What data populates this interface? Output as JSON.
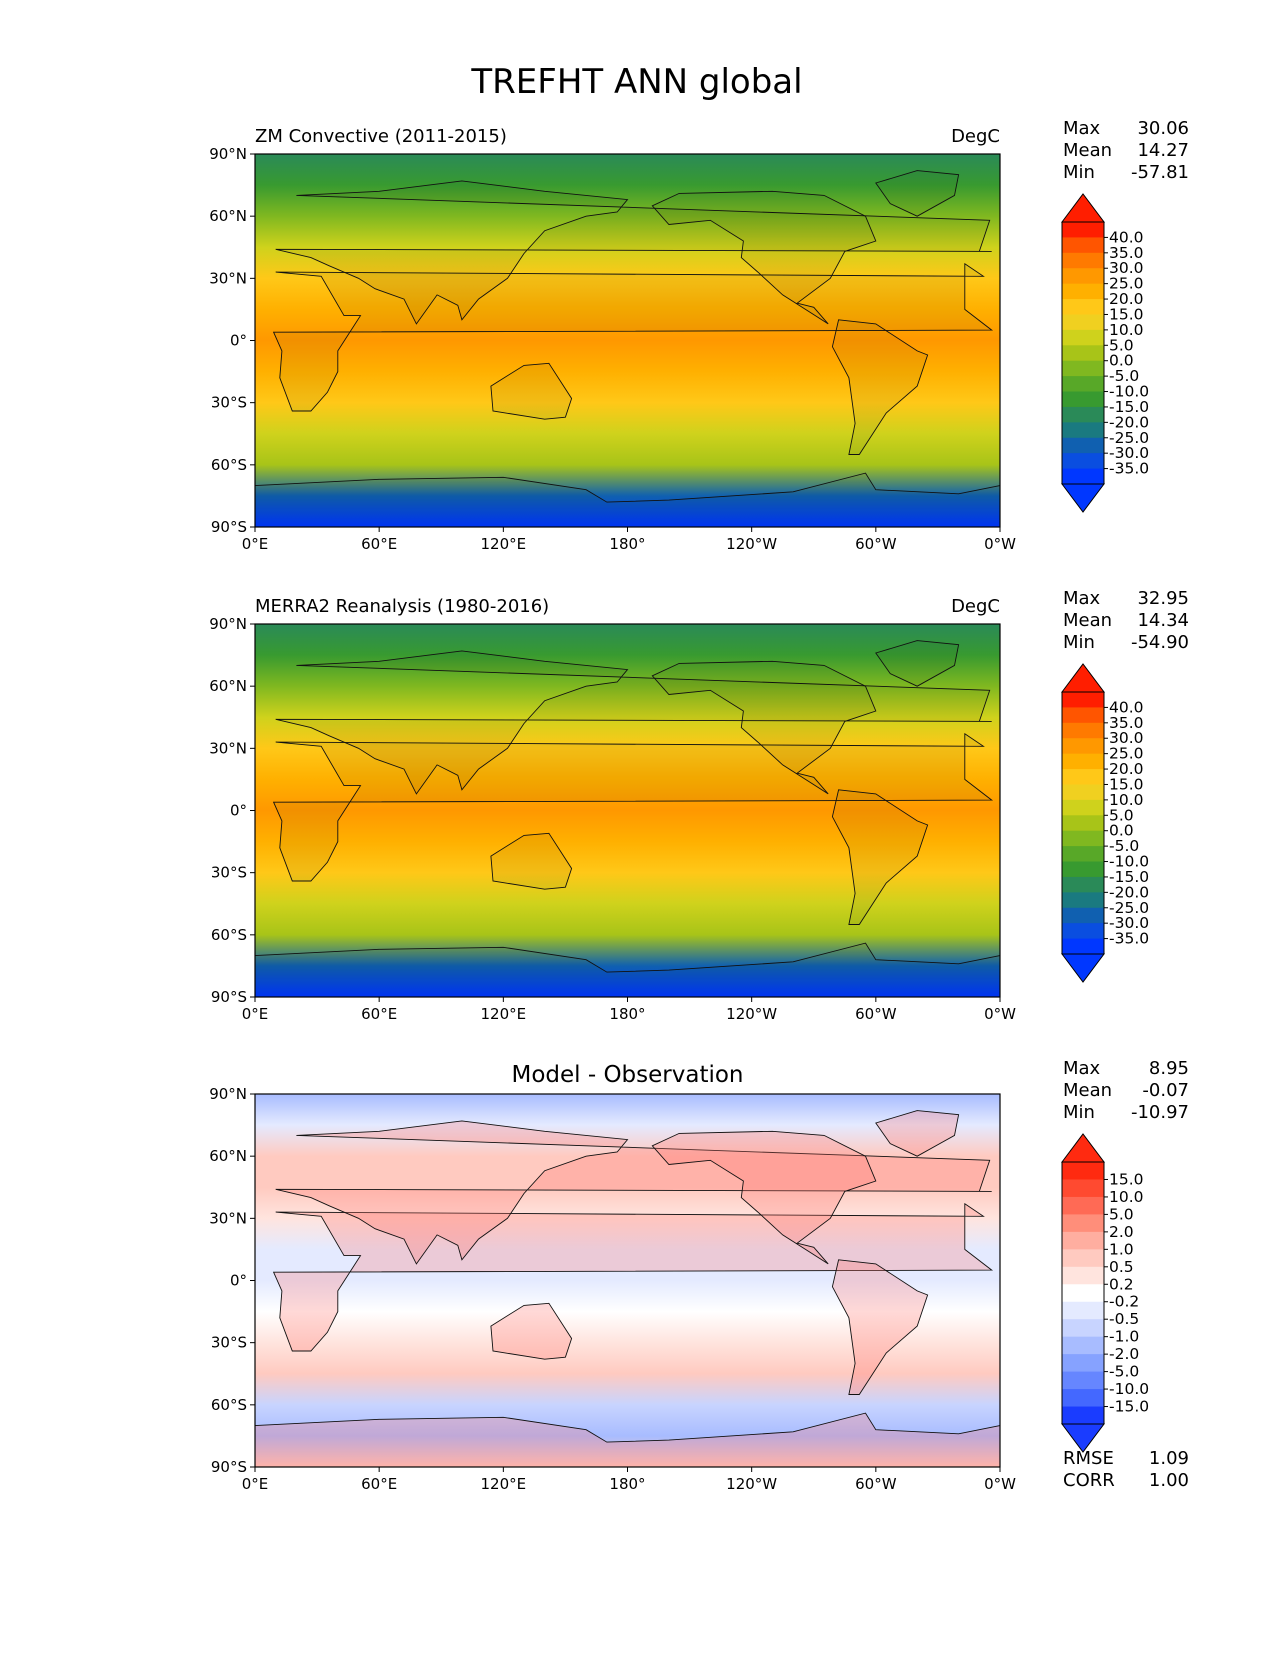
{
  "figure": {
    "title": "TREFHT ANN global"
  },
  "panels": [
    {
      "id": "model",
      "left_title": "ZM Convective (2011-2015)",
      "right_title": "DegC",
      "center_title": "",
      "stats": [
        {
          "label": "Max",
          "value": "30.06"
        },
        {
          "label": "Mean",
          "value": "14.27"
        },
        {
          "label": "Min",
          "value": "-57.81"
        }
      ],
      "colorbar_labels": [
        "40.0",
        "35.0",
        "30.0",
        "25.0",
        "20.0",
        "15.0",
        "10.0",
        "5.0",
        "0.0",
        "-5.0",
        "-10.0",
        "-15.0",
        "-20.0",
        "-25.0",
        "-30.0",
        "-35.0"
      ],
      "colorbar_colors": [
        "#ff1e00",
        "#ff5500",
        "#ff7a00",
        "#ff9800",
        "#ffb000",
        "#ffc818",
        "#f0d020",
        "#cfd21c",
        "#a8c418",
        "#80b820",
        "#58a828",
        "#389a30",
        "#2a8a58",
        "#1a7a80",
        "#1060b0",
        "#0a4ee0",
        "#0037ff"
      ],
      "extra_stats": []
    },
    {
      "id": "obs",
      "left_title": "MERRA2 Reanalysis (1980-2016)",
      "right_title": "DegC",
      "center_title": "",
      "stats": [
        {
          "label": "Max",
          "value": "32.95"
        },
        {
          "label": "Mean",
          "value": "14.34"
        },
        {
          "label": "Min",
          "value": "-54.90"
        }
      ],
      "colorbar_labels": [
        "40.0",
        "35.0",
        "30.0",
        "25.0",
        "20.0",
        "15.0",
        "10.0",
        "5.0",
        "0.0",
        "-5.0",
        "-10.0",
        "-15.0",
        "-20.0",
        "-25.0",
        "-30.0",
        "-35.0"
      ],
      "colorbar_colors": [
        "#ff1e00",
        "#ff5500",
        "#ff7a00",
        "#ff9800",
        "#ffb000",
        "#ffc818",
        "#f0d020",
        "#cfd21c",
        "#a8c418",
        "#80b820",
        "#58a828",
        "#389a30",
        "#2a8a58",
        "#1a7a80",
        "#1060b0",
        "#0a4ee0",
        "#0037ff"
      ],
      "extra_stats": []
    },
    {
      "id": "diff",
      "left_title": "",
      "right_title": "",
      "center_title": "Model - Observation",
      "stats": [
        {
          "label": "Max",
          "value": "8.95"
        },
        {
          "label": "Mean",
          "value": "-0.07"
        },
        {
          "label": "Min",
          "value": "-10.97"
        }
      ],
      "colorbar_labels": [
        "15.0",
        "10.0",
        "5.0",
        "2.0",
        "1.0",
        "0.5",
        "0.2",
        "-0.2",
        "-0.5",
        "-1.0",
        "-2.0",
        "-5.0",
        "-10.0",
        "-15.0"
      ],
      "colorbar_colors": [
        "#ff2a10",
        "#ff4a30",
        "#ff6a55",
        "#ff8e7a",
        "#ffaea0",
        "#ffcac0",
        "#ffe4de",
        "#ffffff",
        "#e4eaff",
        "#c8d4ff",
        "#a8bcff",
        "#86a2ff",
        "#6686ff",
        "#4468ff",
        "#1a3cff"
      ],
      "extra_stats": [
        {
          "label": "RMSE",
          "value": "1.09"
        },
        {
          "label": "CORR",
          "value": "1.00"
        }
      ]
    }
  ],
  "axes": {
    "lat_ticks": [
      "90°N",
      "60°N",
      "30°N",
      "0°",
      "30°S",
      "60°S",
      "90°S"
    ],
    "lon_ticks": [
      "0°E",
      "60°E",
      "120°E",
      "180°",
      "120°W",
      "60°W",
      "0°W"
    ]
  },
  "chart_data": [
    {
      "type": "heatmap",
      "title": "ZM Convective (2011-2015)",
      "units": "DegC",
      "xlabel": "",
      "ylabel": "",
      "x_ticks": [
        "0°E",
        "60°E",
        "120°E",
        "180°",
        "120°W",
        "60°W",
        "0°W"
      ],
      "y_ticks": [
        "90°N",
        "60°N",
        "30°N",
        "0°",
        "30°S",
        "60°S",
        "90°S"
      ],
      "xlim": [
        0,
        360
      ],
      "ylim": [
        -90,
        90
      ],
      "levels": [
        -35,
        -30,
        -25,
        -20,
        -15,
        -10,
        -5,
        0,
        5,
        10,
        15,
        20,
        25,
        30,
        35,
        40
      ],
      "colormap": "temperature (blue → green → yellow → orange → red)",
      "approx_zonal_mean_lat": [
        90,
        75,
        60,
        45,
        30,
        15,
        0,
        -15,
        -30,
        -45,
        -60,
        -75,
        -90
      ],
      "approx_zonal_mean_value": [
        -20,
        -12,
        -3,
        7,
        17,
        24,
        26,
        23,
        17,
        9,
        1,
        -30,
        -45
      ],
      "stats": {
        "max": 30.06,
        "mean": 14.27,
        "min": -57.81
      }
    },
    {
      "type": "heatmap",
      "title": "MERRA2 Reanalysis (1980-2016)",
      "units": "DegC",
      "xlabel": "",
      "ylabel": "",
      "x_ticks": [
        "0°E",
        "60°E",
        "120°E",
        "180°",
        "120°W",
        "60°W",
        "0°W"
      ],
      "y_ticks": [
        "90°N",
        "60°N",
        "30°N",
        "0°",
        "30°S",
        "60°S",
        "90°S"
      ],
      "xlim": [
        0,
        360
      ],
      "ylim": [
        -90,
        90
      ],
      "levels": [
        -35,
        -30,
        -25,
        -20,
        -15,
        -10,
        -5,
        0,
        5,
        10,
        15,
        20,
        25,
        30,
        35,
        40
      ],
      "colormap": "temperature (blue → green → yellow → orange → red)",
      "approx_zonal_mean_lat": [
        90,
        75,
        60,
        45,
        30,
        15,
        0,
        -15,
        -30,
        -45,
        -60,
        -75,
        -90
      ],
      "approx_zonal_mean_value": [
        -17,
        -11,
        -3,
        7,
        17,
        24,
        26,
        23,
        17,
        9,
        1,
        -29,
        -46
      ],
      "stats": {
        "max": 32.95,
        "mean": 14.34,
        "min": -54.9
      }
    },
    {
      "type": "heatmap",
      "title": "Model - Observation",
      "units": "",
      "xlabel": "",
      "ylabel": "",
      "x_ticks": [
        "0°E",
        "60°E",
        "120°E",
        "180°",
        "120°W",
        "60°W",
        "0°W"
      ],
      "y_ticks": [
        "90°N",
        "60°N",
        "30°N",
        "0°",
        "30°S",
        "60°S",
        "90°S"
      ],
      "xlim": [
        0,
        360
      ],
      "ylim": [
        -90,
        90
      ],
      "levels": [
        -15,
        -10,
        -5,
        -2,
        -1,
        -0.5,
        -0.2,
        0.2,
        0.5,
        1,
        2,
        5,
        10,
        15
      ],
      "colormap": "diverging (blue → white → red)",
      "approx_zonal_mean_lat": [
        90,
        75,
        60,
        45,
        30,
        15,
        0,
        -15,
        -30,
        -45,
        -60,
        -75,
        -90
      ],
      "approx_zonal_mean_value": [
        -1.5,
        -0.5,
        0.8,
        0.6,
        0.3,
        -0.3,
        -0.3,
        0.1,
        0.3,
        0.6,
        -0.8,
        -1.5,
        0.8
      ],
      "stats": {
        "max": 8.95,
        "mean": -0.07,
        "min": -10.97,
        "rmse": 1.09,
        "corr": 1.0
      }
    }
  ]
}
